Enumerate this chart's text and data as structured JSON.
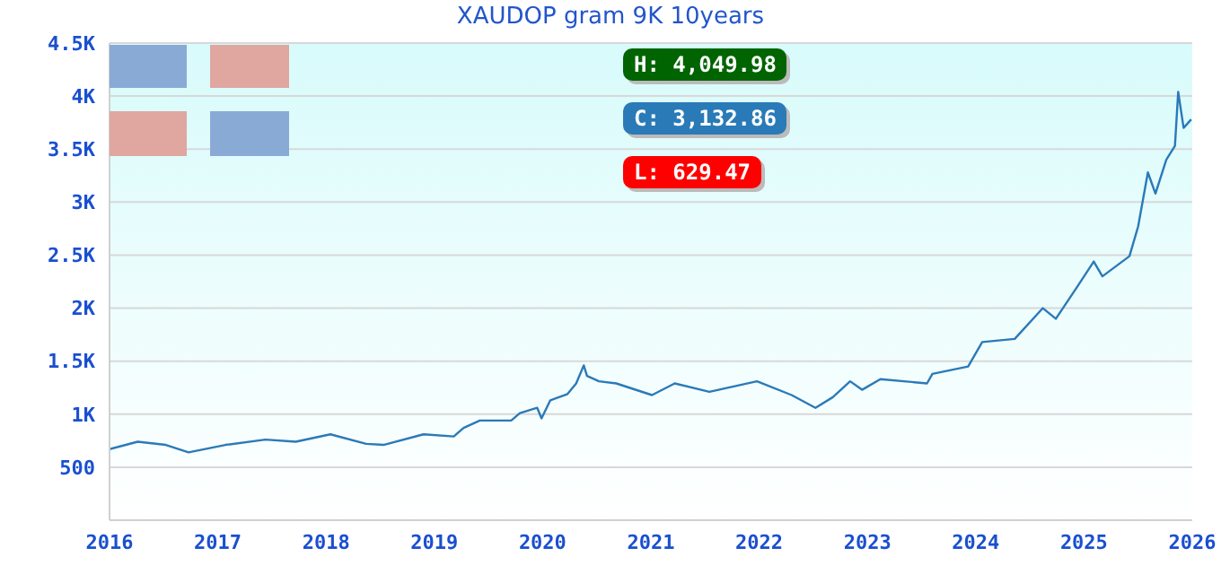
{
  "chart_data": {
    "type": "line",
    "title": "XAUDOP gram 9K 10years",
    "x": [
      2016.0,
      2016.26,
      2016.52,
      2016.73,
      2017.07,
      2017.44,
      2017.72,
      2018.04,
      2018.37,
      2018.53,
      2018.9,
      2019.18,
      2019.27,
      2019.42,
      2019.71,
      2019.79,
      2019.95,
      2019.99,
      2020.07,
      2020.23,
      2020.31,
      2020.38,
      2020.41,
      2020.52,
      2020.68,
      2021.01,
      2021.22,
      2021.54,
      2021.98,
      2022.3,
      2022.52,
      2022.68,
      2022.84,
      2022.95,
      2023.12,
      2023.55,
      2023.6,
      2023.93,
      2024.06,
      2024.36,
      2024.62,
      2024.74,
      2024.93,
      2025.09,
      2025.17,
      2025.42,
      2025.5,
      2025.59,
      2025.66,
      2025.76,
      2025.84,
      2025.87,
      2025.92,
      2025.99
    ],
    "series": [
      {
        "color": "#2a7ab8",
        "values": [
          670,
          740,
          710,
          640,
          710,
          760,
          740,
          810,
          720,
          710,
          810,
          790,
          870,
          940,
          940,
          1010,
          1060,
          960,
          1130,
          1190,
          1290,
          1460,
          1360,
          1310,
          1290,
          1180,
          1290,
          1210,
          1310,
          1180,
          1060,
          1160,
          1310,
          1230,
          1330,
          1290,
          1380,
          1450,
          1680,
          1710,
          2000,
          1900,
          2190,
          2440,
          2300,
          2490,
          2770,
          3280,
          3080,
          3400,
          3530,
          4040,
          3700,
          3780
        ]
      }
    ],
    "xlim": [
      2016,
      2026
    ],
    "xticks": [
      2016,
      2017,
      2018,
      2019,
      2020,
      2021,
      2022,
      2023,
      2024,
      2025,
      2026
    ],
    "ylim": [
      0,
      4500
    ],
    "yticks": [
      500,
      {
        "value": 1000,
        "label": "1K"
      },
      {
        "value": 1500,
        "label": "1.5K"
      },
      {
        "value": 2000,
        "label": "2K"
      },
      {
        "value": 2500,
        "label": "2.5K"
      },
      {
        "value": 3000,
        "label": "3K"
      },
      {
        "value": 3500,
        "label": "3.5K"
      },
      {
        "value": 4000,
        "label": "4K"
      },
      {
        "value": 4500,
        "label": "4.5K"
      }
    ],
    "grid": "y",
    "marker": "none",
    "line_style": "solid",
    "annotations": [
      "H: 4,049.98",
      "C: 3,132.86",
      "L: 629.47"
    ]
  }
}
